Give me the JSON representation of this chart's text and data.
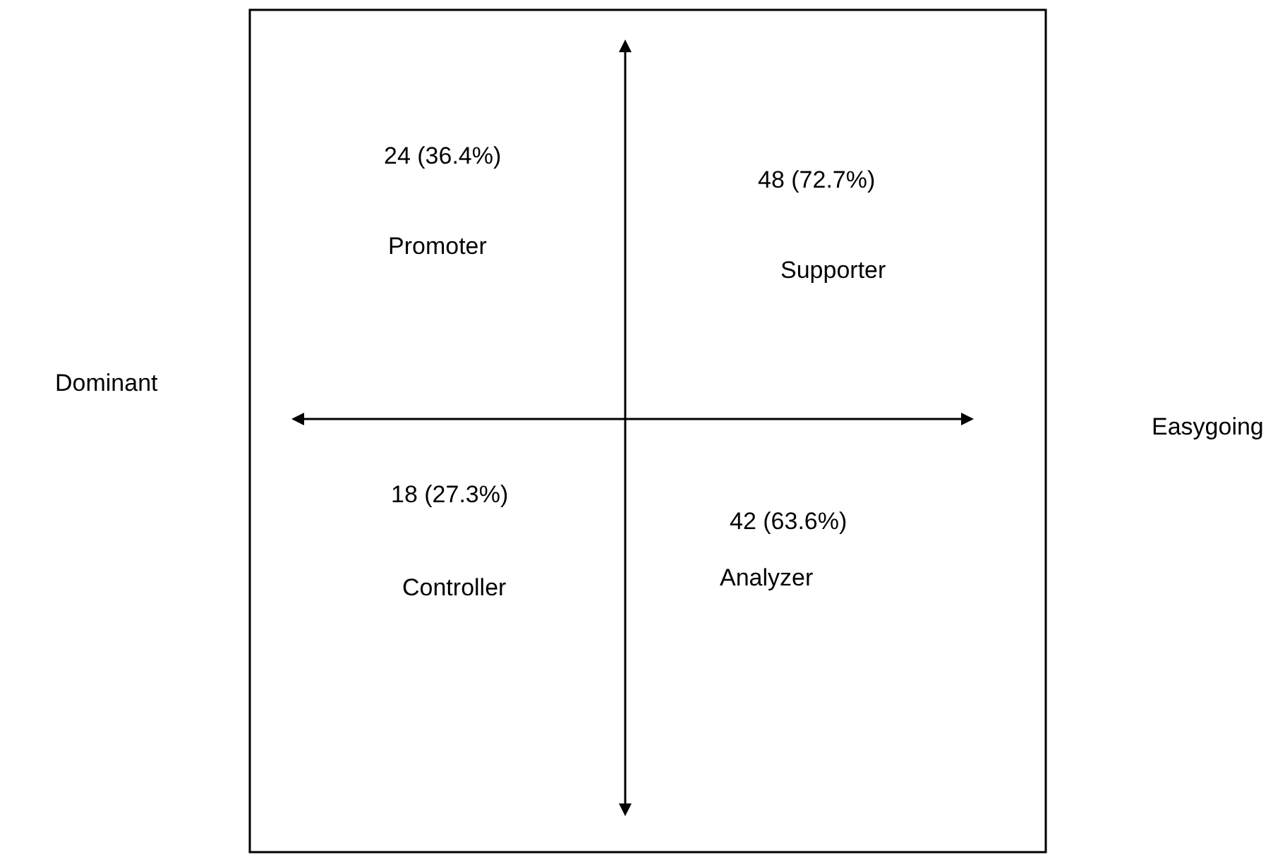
{
  "chart_data": {
    "type": "other",
    "categories": [
      "Promoter",
      "Supporter",
      "Controller",
      "Analyzer"
    ],
    "values": [
      24,
      48,
      18,
      42
    ],
    "value_labels": [
      "24 (36.4%)",
      "48 (72.7%)",
      "18 (27.3%)",
      "42 (63.6%)"
    ],
    "annotations": [
      "Dominant",
      "Easygoing"
    ]
  }
}
